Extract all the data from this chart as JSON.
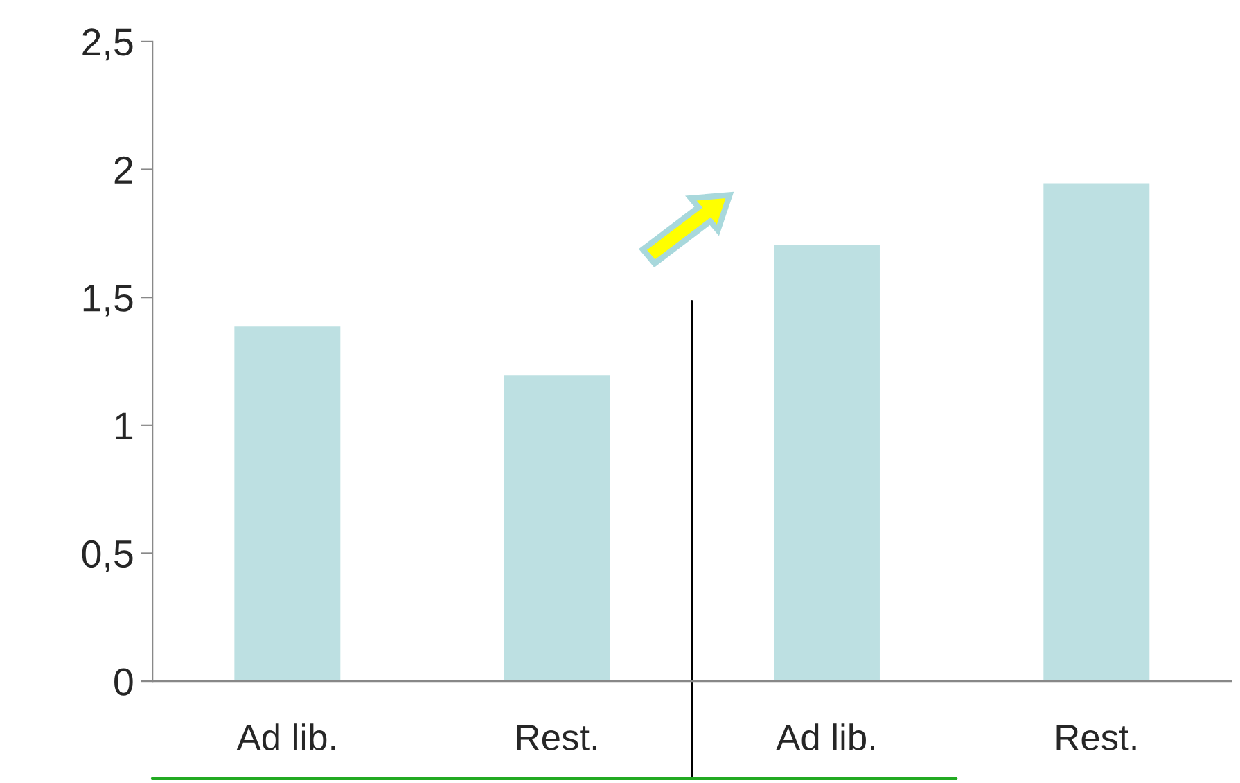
{
  "chart_data": {
    "type": "bar",
    "categories": [
      "Ad lib.",
      "Rest.",
      "Ad lib.",
      "Rest."
    ],
    "values": [
      1.39,
      1.2,
      1.71,
      1.95
    ],
    "color": "#bde0e2",
    "ylim": [
      0,
      2.5
    ],
    "yticks": [
      0,
      {
        "value": 0.5,
        "label": "0,5"
      },
      1,
      {
        "value": 1.5,
        "label": "1,5"
      },
      2,
      {
        "value": 2.5,
        "label": "2,5"
      }
    ],
    "grid": false,
    "legend": false
  }
}
